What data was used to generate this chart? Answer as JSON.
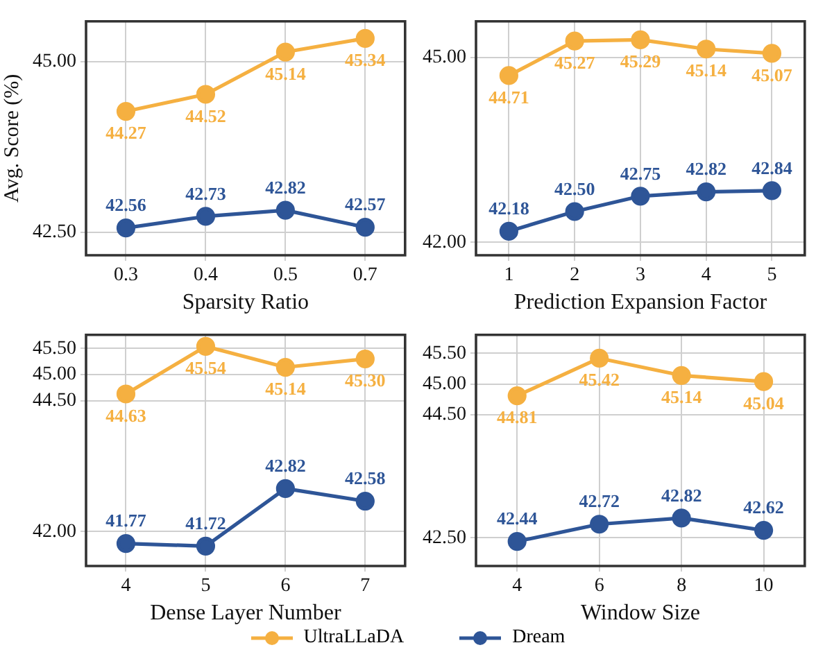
{
  "chart_data": [
    {
      "type": "line",
      "ylabel": "Avg. Score (%)",
      "xlabel": "Sparsity Ratio",
      "categories": [
        "0.3",
        "0.4",
        "0.5",
        "0.7"
      ],
      "series": [
        {
          "name": "UltraLLaDA",
          "color": "#f5b041",
          "values": [
            44.27,
            44.52,
            45.14,
            45.34
          ]
        },
        {
          "name": "Dream",
          "color": "#2e5597",
          "values": [
            42.56,
            42.73,
            42.82,
            42.57
          ]
        }
      ],
      "ylim": [
        42.16,
        45.59
      ],
      "yticks": [
        {
          "value": 42.5,
          "label": "42.50"
        },
        {
          "value": 45,
          "label": "45.00"
        }
      ],
      "grid": true,
      "marker": "circle",
      "data_labels": true,
      "legend": "bottom"
    },
    {
      "type": "line",
      "xlabel": "Prediction Expansion Factor",
      "categories": [
        "1",
        "2",
        "3",
        "4",
        "5"
      ],
      "series": [
        {
          "name": "UltraLLaDA",
          "color": "#f5b041",
          "values": [
            44.71,
            45.27,
            45.29,
            45.14,
            45.07
          ]
        },
        {
          "name": "Dream",
          "color": "#2e5597",
          "values": [
            42.18,
            42.5,
            42.75,
            42.82,
            42.84
          ],
          "value_labels": [
            "42.18",
            "42.50",
            "42.75",
            "42.82",
            "42.84"
          ]
        }
      ],
      "ylim": [
        41.79,
        45.59
      ],
      "yticks": [
        {
          "value": 42,
          "label": "42.00"
        },
        {
          "value": 45,
          "label": "45.00"
        }
      ],
      "grid": true,
      "marker": "circle",
      "data_labels": true,
      "legend": "bottom"
    },
    {
      "type": "line",
      "xlabel": "Dense Layer Number",
      "categories": [
        "4",
        "5",
        "6",
        "7"
      ],
      "series": [
        {
          "name": "UltraLLaDA",
          "color": "#f5b041",
          "values": [
            44.63,
            45.54,
            45.14,
            45.3
          ],
          "value_labels": [
            "44.63",
            "45.54",
            "45.14",
            "45.30"
          ]
        },
        {
          "name": "Dream",
          "color": "#2e5597",
          "values": [
            41.77,
            41.72,
            42.82,
            42.58
          ]
        }
      ],
      "ylim": [
        41.34,
        45.76
      ],
      "yticks": [
        {
          "value": 42,
          "label": "42.00"
        },
        {
          "value": 44.5,
          "label": "44.50"
        },
        {
          "value": 45,
          "label": "45.00"
        },
        {
          "value": 45.5,
          "label": "45.50"
        }
      ],
      "grid": true,
      "marker": "circle",
      "data_labels": true,
      "legend": "bottom"
    },
    {
      "type": "line",
      "xlabel": "Window Size",
      "categories": [
        "4",
        "6",
        "8",
        "10"
      ],
      "series": [
        {
          "name": "UltraLLaDA",
          "color": "#f5b041",
          "values": [
            44.81,
            45.42,
            45.14,
            45.04
          ]
        },
        {
          "name": "Dream",
          "color": "#2e5597",
          "values": [
            42.44,
            42.72,
            42.82,
            42.62
          ]
        }
      ],
      "ylim": [
        42.04,
        45.8
      ],
      "yticks": [
        {
          "value": 42.5,
          "label": "42.50"
        },
        {
          "value": 44.5,
          "label": "44.50"
        },
        {
          "value": 45,
          "label": "45.00"
        },
        {
          "value": 45.5,
          "label": "45.50"
        }
      ],
      "grid": true,
      "marker": "circle",
      "data_labels": true,
      "legend": "bottom"
    }
  ]
}
